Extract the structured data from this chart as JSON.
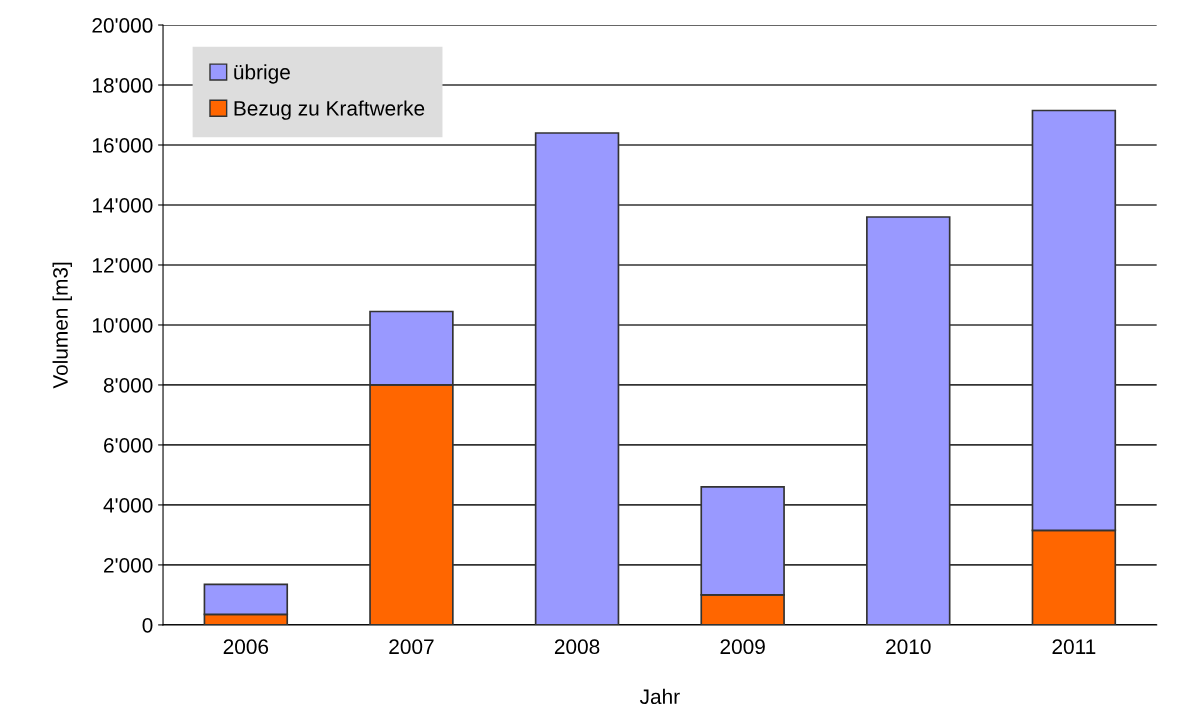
{
  "chart_data": {
    "type": "bar",
    "stacked": true,
    "xlabel": "Jahr",
    "ylabel": "Volumen [m3]",
    "categories": [
      "2006",
      "2007",
      "2008",
      "2009",
      "2010",
      "2011"
    ],
    "series": [
      {
        "name": "Bezug zu Kraftwerke",
        "color": "#ff6600",
        "values": [
          350,
          8000,
          0,
          1000,
          0,
          3150
        ]
      },
      {
        "name": "übrige",
        "color": "#9999ff",
        "values": [
          1000,
          2450,
          16400,
          3600,
          13600,
          14000
        ]
      }
    ],
    "ylim": [
      0,
      20000
    ],
    "yticks": [
      {
        "value": 0,
        "label": "0"
      },
      {
        "value": 2000,
        "label": "2'000"
      },
      {
        "value": 4000,
        "label": "4'000"
      },
      {
        "value": 6000,
        "label": "6'000"
      },
      {
        "value": 8000,
        "label": "8'000"
      },
      {
        "value": 10000,
        "label": "10'000"
      },
      {
        "value": 12000,
        "label": "12'000"
      },
      {
        "value": 14000,
        "label": "14'000"
      },
      {
        "value": 16000,
        "label": "16'000"
      },
      {
        "value": 18000,
        "label": "18'000"
      },
      {
        "value": 20000,
        "label": "20'000"
      }
    ],
    "grid": "y",
    "legend": "top left"
  }
}
